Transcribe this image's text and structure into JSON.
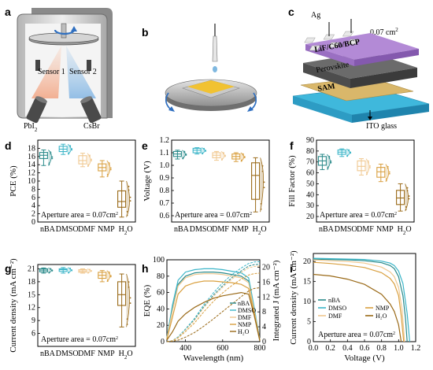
{
  "panels": {
    "a": {
      "label": "a",
      "sensor1": "Sensor 1",
      "sensor2": "Sensor 2",
      "src1": "PbI",
      "src1_sub": "2",
      "src2": "CsBr"
    },
    "b": {
      "label": "b"
    },
    "c": {
      "label": "c",
      "electrode": "Ag",
      "area": "0.07 cm",
      "area_sup": "2",
      "layers": [
        "LiF/C60/BCP",
        "Perovskite",
        "SAM"
      ],
      "substrate": "ITO glass"
    }
  },
  "categories": [
    "nBA",
    "DMSO",
    "DMF",
    "NMP",
    "H2O"
  ],
  "category_colors": {
    "nBA": "#2a8a8a",
    "DMSO": "#3bb5c8",
    "DMF": "#f0c890",
    "NMP": "#d9a040",
    "H2O": "#9a6a18"
  },
  "aperture_note": "Aperture area = 0.07cm",
  "aperture_sup": "2",
  "chart_data": [
    {
      "id": "d",
      "type": "boxplot",
      "label": "d",
      "ylabel": "PCE (%)",
      "ylim": [
        0,
        20
      ],
      "yticks": [
        "0",
        "2",
        "4",
        "6",
        "8",
        "10",
        "12",
        "14",
        "16",
        "18"
      ],
      "boxes": [
        {
          "cat": "nBA",
          "q1": 15.5,
          "median": 16.3,
          "q3": 17.0,
          "min": 13.8,
          "max": 17.6
        },
        {
          "cat": "DMSO",
          "q1": 17.2,
          "median": 17.8,
          "q3": 18.5,
          "min": 16.5,
          "max": 19.0
        },
        {
          "cat": "DMF",
          "q1": 14.2,
          "median": 15.0,
          "q3": 16.2,
          "min": 13.5,
          "max": 16.8
        },
        {
          "cat": "NMP",
          "q1": 12.5,
          "median": 13.3,
          "q3": 14.2,
          "min": 11.0,
          "max": 15.0
        },
        {
          "cat": "H2O",
          "q1": 3.6,
          "median": 5.0,
          "q3": 7.6,
          "min": 1.2,
          "max": 10.0
        }
      ]
    },
    {
      "id": "e",
      "type": "boxplot",
      "label": "e",
      "ylabel": "Voltage (V)",
      "ylim": [
        0.55,
        1.2
      ],
      "yticks": [
        "0.6",
        "0.7",
        "0.8",
        "0.9",
        "1.0",
        "1.1",
        "1.2"
      ],
      "boxes": [
        {
          "cat": "nBA",
          "q1": 1.07,
          "median": 1.09,
          "q3": 1.11,
          "min": 1.05,
          "max": 1.12
        },
        {
          "cat": "DMSO",
          "q1": 1.1,
          "median": 1.12,
          "q3": 1.135,
          "min": 1.09,
          "max": 1.14
        },
        {
          "cat": "DMF",
          "q1": 1.06,
          "median": 1.08,
          "q3": 1.1,
          "min": 1.04,
          "max": 1.11
        },
        {
          "cat": "NMP",
          "q1": 1.05,
          "median": 1.07,
          "q3": 1.09,
          "min": 1.03,
          "max": 1.1
        },
        {
          "cat": "H2O",
          "q1": 0.73,
          "median": 0.92,
          "q3": 1.02,
          "min": 0.63,
          "max": 1.06
        }
      ]
    },
    {
      "id": "f",
      "type": "boxplot",
      "label": "f",
      "ylabel": "Fill Factor (%)",
      "ylim": [
        15,
        90
      ],
      "yticks": [
        "20",
        "30",
        "40",
        "50",
        "60",
        "70",
        "80",
        "90"
      ],
      "boxes": [
        {
          "cat": "nBA",
          "q1": 67,
          "median": 71,
          "q3": 75,
          "min": 63,
          "max": 77
        },
        {
          "cat": "DMSO",
          "q1": 77,
          "median": 79,
          "q3": 81,
          "min": 75,
          "max": 82
        },
        {
          "cat": "DMF",
          "q1": 62,
          "median": 66,
          "q3": 71,
          "min": 58,
          "max": 73
        },
        {
          "cat": "NMP",
          "q1": 56,
          "median": 61,
          "q3": 65,
          "min": 52,
          "max": 68
        },
        {
          "cat": "H2O",
          "q1": 31,
          "median": 37,
          "q3": 44,
          "min": 25,
          "max": 50
        }
      ]
    },
    {
      "id": "g",
      "type": "boxplot",
      "label": "g",
      "ylabel": "Current density (mA cm⁻²)",
      "ylim": [
        3,
        22
      ],
      "yticks": [
        "6",
        "9",
        "12",
        "15",
        "18",
        "21"
      ],
      "boxes": [
        {
          "cat": "nBA",
          "q1": 20.3,
          "median": 20.7,
          "q3": 21.0,
          "min": 20.0,
          "max": 21.2
        },
        {
          "cat": "DMSO",
          "q1": 20.4,
          "median": 20.8,
          "q3": 21.0,
          "min": 20.0,
          "max": 21.3
        },
        {
          "cat": "DMF",
          "q1": 20.2,
          "median": 20.5,
          "q3": 20.8,
          "min": 20.0,
          "max": 21.0
        },
        {
          "cat": "NMP",
          "q1": 18.8,
          "median": 19.5,
          "q3": 20.2,
          "min": 18.0,
          "max": 20.6
        },
        {
          "cat": "H2O",
          "q1": 12.5,
          "median": 15.0,
          "q3": 18.0,
          "min": 7.5,
          "max": 19.8
        }
      ]
    },
    {
      "id": "h",
      "type": "line",
      "label": "h",
      "xlabel": "Wavelength (nm)",
      "ylabel": "EQE (%)",
      "y2label": "Integrated J (mA cm⁻²)",
      "xlim": [
        300,
        800
      ],
      "ylim": [
        0,
        100
      ],
      "y2lim": [
        0,
        22
      ],
      "xticks": [
        "400",
        "600",
        "800"
      ],
      "yticks": [
        "0",
        "20",
        "40",
        "60",
        "80",
        "100"
      ],
      "y2ticks": [
        "0",
        "4",
        "8",
        "12",
        "16",
        "20"
      ],
      "legend": [
        "nBA",
        "DMSO",
        "DMF",
        "NMP",
        "H₂O"
      ],
      "series": [
        {
          "name": "nBA",
          "x": [
            300,
            330,
            360,
            400,
            450,
            500,
            550,
            600,
            650,
            700,
            740,
            770,
            800
          ],
          "y": [
            5,
            40,
            70,
            80,
            84,
            85,
            85,
            84,
            82,
            80,
            74,
            40,
            2
          ],
          "j": [
            0,
            0.3,
            1.2,
            3.2,
            6,
            9.5,
            12.5,
            15,
            17.2,
            19,
            20.3,
            20.7,
            20.8
          ]
        },
        {
          "name": "DMSO",
          "x": [
            300,
            330,
            360,
            400,
            450,
            500,
            550,
            600,
            650,
            700,
            740,
            770,
            800
          ],
          "y": [
            5,
            45,
            75,
            85,
            88,
            89,
            89,
            88,
            86,
            84,
            78,
            42,
            2
          ],
          "j": [
            0,
            0.3,
            1.3,
            3.4,
            6.3,
            10,
            13.1,
            15.8,
            18,
            19.8,
            21,
            21.4,
            21.5
          ]
        },
        {
          "name": "DMF",
          "x": [
            300,
            330,
            360,
            400,
            450,
            500,
            550,
            600,
            650,
            700,
            740,
            770,
            800
          ],
          "y": [
            4,
            38,
            68,
            78,
            82,
            83,
            83,
            82,
            80,
            78,
            72,
            38,
            2
          ],
          "j": [
            0,
            0.3,
            1.1,
            3.1,
            5.8,
            9.2,
            12.1,
            14.6,
            16.8,
            18.6,
            19.8,
            20.2,
            20.3
          ]
        },
        {
          "name": "NMP",
          "x": [
            300,
            330,
            360,
            400,
            450,
            500,
            550,
            600,
            650,
            700,
            740,
            770,
            800
          ],
          "y": [
            3,
            30,
            58,
            68,
            72,
            74,
            74,
            73,
            72,
            70,
            65,
            35,
            2
          ],
          "j": [
            0,
            0.2,
            1,
            2.7,
            5.1,
            8.1,
            10.8,
            13.1,
            15.1,
            16.8,
            17.9,
            18.3,
            18.4
          ]
        },
        {
          "name": "H₂O",
          "x": [
            300,
            330,
            360,
            400,
            450,
            500,
            550,
            600,
            650,
            700,
            740,
            770,
            800
          ],
          "y": [
            2,
            12,
            25,
            34,
            42,
            48,
            53,
            56,
            58,
            60,
            58,
            32,
            1
          ],
          "j": [
            0,
            0.1,
            0.4,
            1.2,
            2.5,
            4.2,
            6.1,
            8.1,
            10.1,
            12.1,
            13.6,
            14.3,
            14.5
          ]
        }
      ]
    },
    {
      "id": "i",
      "type": "line",
      "label": "i",
      "xlabel": "Voltage (V)",
      "ylabel": "Current density (mA cm⁻²)",
      "xlim": [
        0,
        1.2
      ],
      "ylim": [
        0,
        22
      ],
      "xticks": [
        "0.0",
        "0.2",
        "0.4",
        "0.6",
        "0.8",
        "1.0",
        "1.2"
      ],
      "yticks": [
        "0",
        "5",
        "10",
        "15",
        "20"
      ],
      "legend": [
        "nBA",
        "DMSO",
        "DMF",
        "NMP",
        "H₂O"
      ],
      "series": [
        {
          "name": "nBA",
          "x": [
            0,
            0.2,
            0.4,
            0.6,
            0.8,
            0.9,
            0.95,
            1.0,
            1.05,
            1.08,
            1.1
          ],
          "y": [
            20.6,
            20.5,
            20.4,
            20.2,
            19.7,
            19.0,
            18.2,
            16.2,
            11.5,
            6,
            0
          ]
        },
        {
          "name": "DMSO",
          "x": [
            0,
            0.2,
            0.4,
            0.6,
            0.8,
            0.9,
            0.95,
            1.0,
            1.05,
            1.1,
            1.13
          ],
          "y": [
            20.8,
            20.7,
            20.6,
            20.5,
            20.1,
            19.6,
            19.0,
            17.6,
            14.5,
            7,
            0
          ]
        },
        {
          "name": "DMF",
          "x": [
            0,
            0.2,
            0.4,
            0.6,
            0.8,
            0.9,
            0.95,
            1.0,
            1.04,
            1.07
          ],
          "y": [
            20.4,
            20.2,
            20.0,
            19.6,
            18.6,
            17.4,
            16.2,
            13.5,
            8,
            0
          ]
        },
        {
          "name": "NMP",
          "x": [
            0,
            0.2,
            0.4,
            0.6,
            0.8,
            0.9,
            0.95,
            1.0,
            1.03,
            1.06
          ],
          "y": [
            19.8,
            19.5,
            19.1,
            18.5,
            17.2,
            15.8,
            14.4,
            11.5,
            6.5,
            0
          ]
        },
        {
          "name": "H₂O",
          "x": [
            0,
            0.2,
            0.4,
            0.6,
            0.8,
            0.9,
            0.95,
            1.0,
            1.03
          ],
          "y": [
            16.8,
            16.4,
            15.6,
            14.3,
            11.8,
            9.4,
            7.5,
            4.2,
            0
          ]
        }
      ]
    }
  ]
}
